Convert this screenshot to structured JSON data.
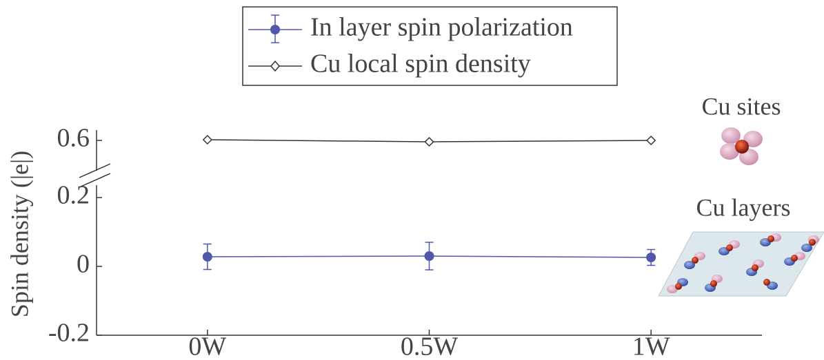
{
  "chart_data": {
    "type": "line",
    "categories": [
      "0W",
      "0.5W",
      "1W"
    ],
    "series": [
      {
        "name": "In layer spin polarization",
        "color": "#5058a8",
        "marker": "circle",
        "values": [
          0.028,
          0.03,
          0.026
        ],
        "errors": [
          0.037,
          0.04,
          0.023
        ]
      },
      {
        "name": "Cu local spin density",
        "color": "#333333",
        "marker": "diamond",
        "values": [
          0.602,
          0.596,
          0.6
        ]
      }
    ],
    "ylabel": "Spin density (|e|)",
    "ylim": [
      -0.2,
      0.63
    ],
    "y_break": [
      0.26,
      0.5
    ],
    "yticks": [
      -0.2,
      0,
      0.2,
      0.6
    ],
    "annotations": [
      "Cu sites",
      "Cu layers"
    ],
    "legend": "top"
  }
}
